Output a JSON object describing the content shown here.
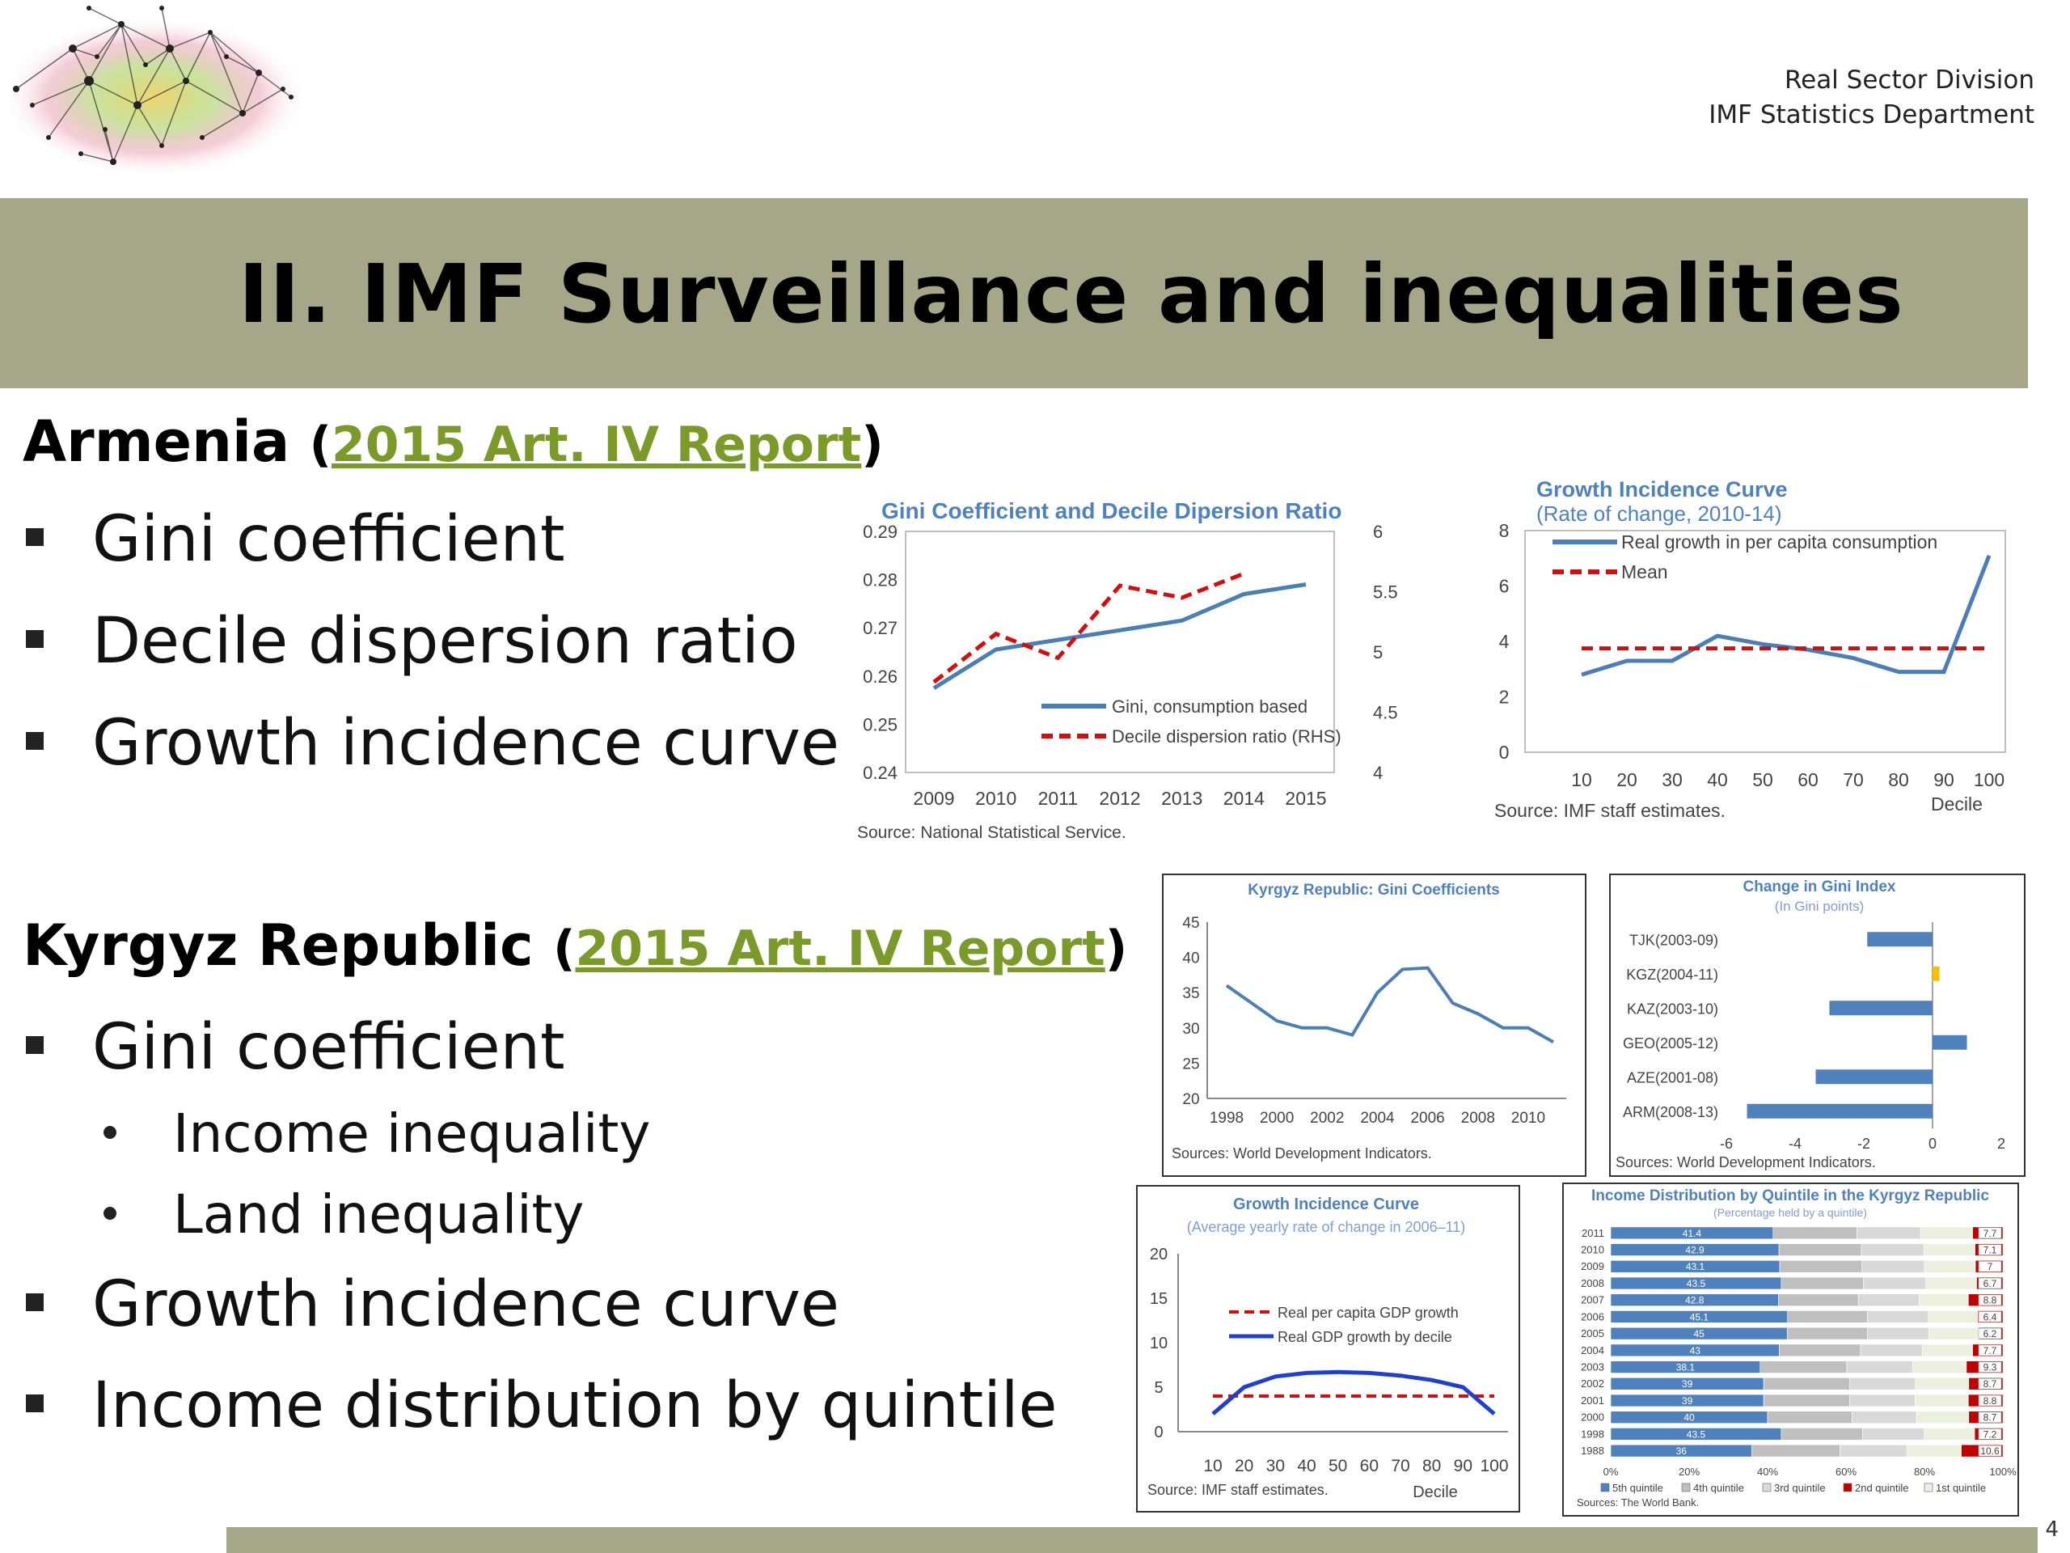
{
  "header": {
    "dept_line1": "Real Sector Division",
    "dept_line2": "IMF Statistics Department"
  },
  "slide": {
    "title": "II. IMF Surveillance and inequalities",
    "page_number": "4"
  },
  "armenia": {
    "country": "Armenia",
    "open_paren": "(",
    "link": "2015 Art. IV Report",
    "close_paren": ")",
    "bullets": [
      "Gini coefficient",
      "Decile dispersion ratio",
      "Growth incidence curve"
    ]
  },
  "kyrgyz": {
    "country": "Kyrgyz Republic",
    "open_paren": "(",
    "link": "2015 Art. IV Report",
    "close_paren": ")",
    "bullet1": "Gini coefficient",
    "sub_bullets": [
      "Income inequality",
      "Land inequality"
    ],
    "bullet2": "Growth incidence curve",
    "bullet3": "Income distribution by quintile"
  },
  "chart_data": [
    {
      "id": "arm-gini",
      "type": "line",
      "title": "Gini Coefficient and Decile Dipersion Ratio",
      "x": [
        "2009",
        "2010",
        "2011",
        "2012",
        "2013",
        "2014",
        "2015"
      ],
      "yticks_left": [
        "0.29",
        "0.28",
        "0.27",
        "0.26",
        "0.25",
        "0.24"
      ],
      "yticks_right": [
        "6",
        "5.5",
        "5",
        "4.5",
        "4"
      ],
      "ylim_left": [
        0.24,
        0.29
      ],
      "ylim_right": [
        4,
        6
      ],
      "series": [
        {
          "name": "Gini, consumption based",
          "axis": "left",
          "values": [
            0.2575,
            0.2655,
            0.2675,
            0.2695,
            0.2715,
            0.277,
            0.279
          ]
        },
        {
          "name": "Decile dispersion ratio (RHS)",
          "axis": "right",
          "values": [
            4.75,
            5.15,
            4.95,
            5.55,
            5.45,
            5.65,
            null
          ]
        }
      ],
      "source": "Source: National Statistical Service."
    },
    {
      "id": "arm-gic",
      "type": "line",
      "title": "Growth Incidence Curve",
      "subtitle": "(Rate of change, 2010-14)",
      "x": [
        "10",
        "20",
        "30",
        "40",
        "50",
        "60",
        "70",
        "80",
        "90",
        "100"
      ],
      "yticks": [
        "8",
        "6",
        "4",
        "2",
        "0"
      ],
      "ylim": [
        0,
        8
      ],
      "xlabel": "Decile",
      "series": [
        {
          "name": "Real growth in per capita consumption",
          "values": [
            2.8,
            3.3,
            3.3,
            4.2,
            3.9,
            3.7,
            3.4,
            2.9,
            2.9,
            7.1
          ]
        },
        {
          "name": "Mean",
          "values": [
            3.75,
            3.75,
            3.75,
            3.75,
            3.75,
            3.75,
            3.75,
            3.75,
            3.75,
            3.75
          ]
        }
      ],
      "source": "Source: IMF staff estimates."
    },
    {
      "id": "kgz-gini",
      "type": "line",
      "title": "Kyrgyz Republic: Gini Coefficients",
      "x": [
        1998,
        1999,
        2000,
        2001,
        2002,
        2003,
        2004,
        2005,
        2006,
        2007,
        2008,
        2009,
        2010,
        2011
      ],
      "xticks": [
        "1998",
        "2000",
        "2002",
        "2004",
        "2006",
        "2008",
        "2010"
      ],
      "yticks": [
        "45",
        "40",
        "35",
        "30",
        "25",
        "20"
      ],
      "ylim": [
        20,
        45
      ],
      "values": [
        36.0,
        33.5,
        31.0,
        30.0,
        30.0,
        29.0,
        35.0,
        38.3,
        38.5,
        33.5,
        32.0,
        30.0,
        30.0,
        28.0
      ],
      "source": "Sources: World Development Indicators."
    },
    {
      "id": "kgz-gini-change",
      "type": "bar",
      "title": "Change in Gini Index",
      "subtitle": "(In Gini points)",
      "categories": [
        "TJK(2003-09)",
        "KGZ(2004-11)",
        "KAZ(2003-10)",
        "GEO(2005-12)",
        "AZE(2001-08)",
        "ARM(2008-13)"
      ],
      "values": [
        -1.9,
        0.2,
        -3.0,
        1.0,
        -3.4,
        -5.4
      ],
      "xticks": [
        "-6",
        "-4",
        "-2",
        "0",
        "2"
      ],
      "xlim": [
        -6,
        2
      ],
      "colors": {
        "default": "#4f81bd",
        "highlight": "#f2c200"
      },
      "source": "Sources: World Development Indicators."
    },
    {
      "id": "kgz-gic",
      "type": "line",
      "title": "Growth Incidence  Curve",
      "subtitle": "(Average yearly rate of change in 2006–11)",
      "x": [
        "10",
        "20",
        "30",
        "40",
        "50",
        "60",
        "70",
        "80",
        "90",
        "100"
      ],
      "yticks": [
        "20",
        "15",
        "10",
        "5",
        "0"
      ],
      "ylim": [
        0,
        20
      ],
      "xlabel": "Decile",
      "series": [
        {
          "name": "Real per capita GDP growth",
          "values": [
            4,
            4,
            4,
            4,
            4,
            4,
            4,
            4,
            4,
            4
          ]
        },
        {
          "name": "Real GDP growth by decile",
          "values": [
            2.0,
            5.0,
            6.2,
            6.6,
            6.7,
            6.6,
            6.3,
            5.8,
            5.0,
            2.0
          ]
        }
      ],
      "source": "Source: IMF staff estimates."
    },
    {
      "id": "kgz-quintile",
      "type": "bar",
      "stacked": true,
      "title": "Income Distribution by Quintile in the Kyrgyz Republic",
      "subtitle": "(Percentage held by a quintile)",
      "categories": [
        "2011",
        "2010",
        "2009",
        "2008",
        "2007",
        "2006",
        "2005",
        "2004",
        "2003",
        "2002",
        "2001",
        "2000",
        "1998",
        "1988"
      ],
      "top_share": [
        41.4,
        42.9,
        43.1,
        43.5,
        42.8,
        45.1,
        45.0,
        43.0,
        38.1,
        39.0,
        39.0,
        40.0,
        43.5,
        36.0
      ],
      "bottom_share": [
        7.7,
        7.1,
        7.0,
        6.7,
        8.8,
        6.4,
        6.2,
        7.7,
        9.3,
        8.7,
        8.8,
        8.7,
        7.2,
        10.6
      ],
      "xticks": [
        "0%",
        "20%",
        "40%",
        "60%",
        "80%",
        "100%"
      ],
      "legend": [
        "5th quintile",
        "4th quintile",
        "3rd quintile",
        "2nd quintile",
        "1st quintile"
      ],
      "colors": [
        "#4f81bd",
        "#bfbfbf",
        "#d9d9d9",
        "#c00000",
        "#ebf1de"
      ],
      "source": "Sources: The World Bank."
    }
  ]
}
